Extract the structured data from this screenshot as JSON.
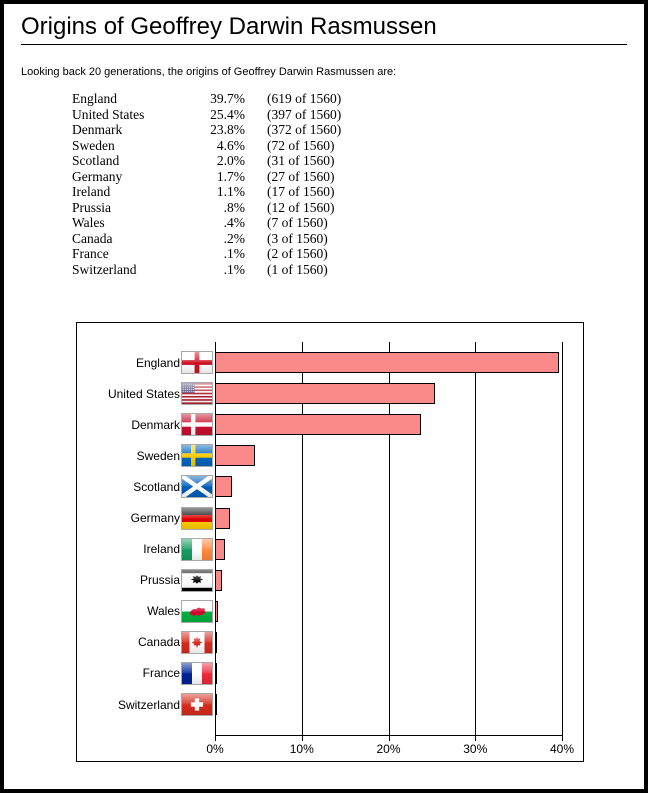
{
  "page": {
    "title": "Origins of Geoffrey Darwin Rasmussen",
    "intro": "Looking back 20 generations, the origins of Geoffrey Darwin Rasmussen are:"
  },
  "origins_table": {
    "rows": [
      {
        "country": "England",
        "percent": "39.7%",
        "count": "(619 of 1560)"
      },
      {
        "country": "United States",
        "percent": "25.4%",
        "count": "(397 of 1560)"
      },
      {
        "country": "Denmark",
        "percent": "23.8%",
        "count": "(372 of 1560)"
      },
      {
        "country": "Sweden",
        "percent": "4.6%",
        "count": "(72 of 1560)"
      },
      {
        "country": "Scotland",
        "percent": "2.0%",
        "count": "(31 of 1560)"
      },
      {
        "country": "Germany",
        "percent": "1.7%",
        "count": "(27 of 1560)"
      },
      {
        "country": "Ireland",
        "percent": "1.1%",
        "count": "(17 of 1560)"
      },
      {
        "country": "Prussia",
        "percent": ".8%",
        "count": "(12 of 1560)"
      },
      {
        "country": "Wales",
        "percent": ".4%",
        "count": "(7 of 1560)"
      },
      {
        "country": "Canada",
        "percent": ".2%",
        "count": "(3 of 1560)"
      },
      {
        "country": "France",
        "percent": ".1%",
        "count": "(2 of 1560)"
      },
      {
        "country": "Switzerland",
        "percent": ".1%",
        "count": "(1 of 1560)"
      }
    ]
  },
  "chart_data": {
    "type": "bar",
    "orientation": "horizontal",
    "title": "",
    "categories": [
      "England",
      "United States",
      "Denmark",
      "Sweden",
      "Scotland",
      "Germany",
      "Ireland",
      "Prussia",
      "Wales",
      "Canada",
      "France",
      "Switzerland"
    ],
    "values": [
      39.7,
      25.4,
      23.8,
      4.6,
      2.0,
      1.7,
      1.1,
      0.8,
      0.4,
      0.2,
      0.1,
      0.1
    ],
    "flags": [
      "england",
      "united-states",
      "denmark",
      "sweden",
      "scotland",
      "germany",
      "ireland",
      "prussia",
      "wales",
      "canada",
      "france",
      "switzerland"
    ],
    "x_ticks": [
      "0%",
      "10%",
      "20%",
      "30%",
      "40%"
    ],
    "xlim": [
      0,
      40
    ],
    "grid": true,
    "legend": "none",
    "bar_color": "#FA8A8A",
    "bar_border_color": "#000000"
  }
}
